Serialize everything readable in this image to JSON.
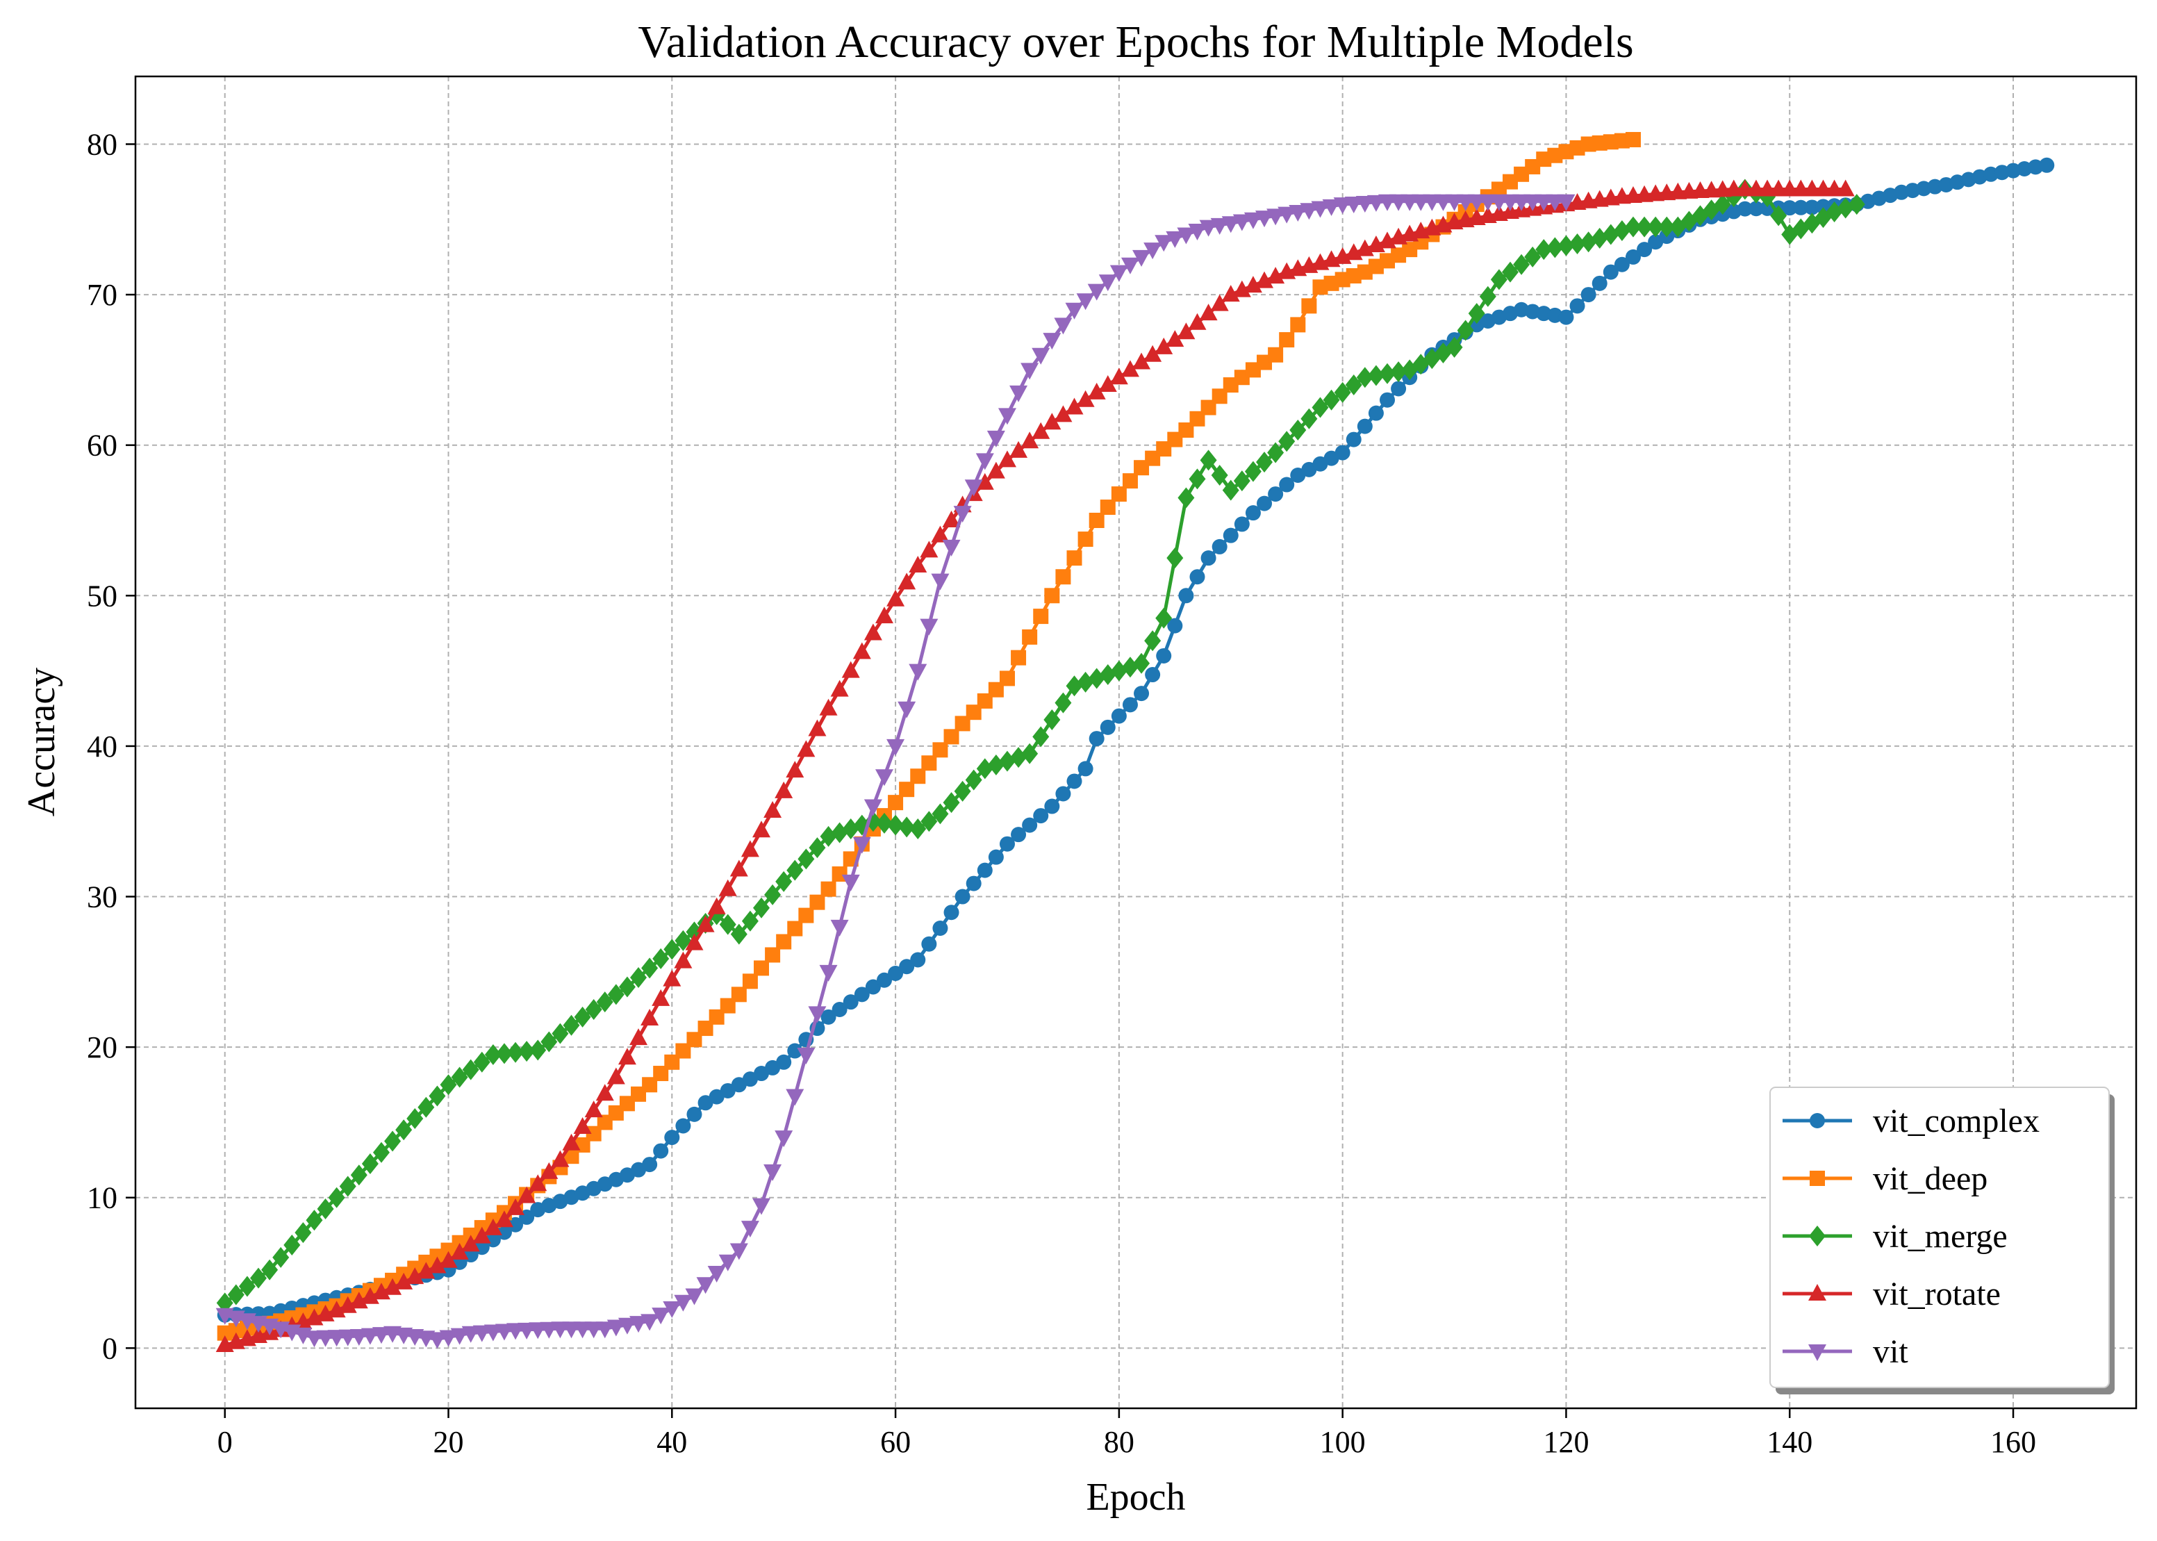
{
  "chart_data": {
    "type": "line",
    "title": "Validation Accuracy over Epochs for Multiple Models",
    "xlabel": "Epoch",
    "ylabel": "Accuracy",
    "xlim": [
      -8,
      171
    ],
    "ylim": [
      -4,
      84.5
    ],
    "xticks": [
      0,
      20,
      40,
      60,
      80,
      100,
      120,
      140,
      160
    ],
    "yticks": [
      0,
      10,
      20,
      30,
      40,
      50,
      60,
      70,
      80
    ],
    "grid": true,
    "legend_position": "lower-right",
    "series": [
      {
        "name": "vit_complex",
        "color": "#1f77b4",
        "marker": "circle",
        "keypoints": [
          [
            0,
            2.2
          ],
          [
            4,
            2.3
          ],
          [
            8,
            3.0
          ],
          [
            12,
            3.7
          ],
          [
            16,
            4.5
          ],
          [
            20,
            5.2
          ],
          [
            24,
            7.2
          ],
          [
            28,
            9.2
          ],
          [
            32,
            10.3
          ],
          [
            36,
            11.5
          ],
          [
            38,
            12.2
          ],
          [
            40,
            14.0
          ],
          [
            43,
            16.3
          ],
          [
            46,
            17.5
          ],
          [
            50,
            19.0
          ],
          [
            54,
            22.0
          ],
          [
            58,
            24.0
          ],
          [
            62,
            25.8
          ],
          [
            66,
            30.0
          ],
          [
            70,
            33.5
          ],
          [
            74,
            36.0
          ],
          [
            77,
            38.5
          ],
          [
            78,
            40.5
          ],
          [
            82,
            43.5
          ],
          [
            84,
            46.0
          ],
          [
            86,
            50.0
          ],
          [
            88,
            52.5
          ],
          [
            92,
            55.5
          ],
          [
            96,
            58.0
          ],
          [
            100,
            59.5
          ],
          [
            104,
            63.0
          ],
          [
            108,
            66.0
          ],
          [
            112,
            68.0
          ],
          [
            116,
            69.0
          ],
          [
            120,
            68.5
          ],
          [
            124,
            71.5
          ],
          [
            128,
            73.5
          ],
          [
            132,
            75.0
          ],
          [
            136,
            75.7
          ],
          [
            142,
            75.8
          ],
          [
            146,
            76.0
          ],
          [
            150,
            76.8
          ],
          [
            154,
            77.3
          ],
          [
            158,
            78.0
          ],
          [
            163,
            78.6
          ]
        ]
      },
      {
        "name": "vit_deep",
        "color": "#ff7f0e",
        "marker": "square",
        "keypoints": [
          [
            0,
            1.0
          ],
          [
            5,
            1.8
          ],
          [
            10,
            2.8
          ],
          [
            15,
            4.5
          ],
          [
            20,
            6.5
          ],
          [
            25,
            9.0
          ],
          [
            30,
            12.0
          ],
          [
            34,
            15.0
          ],
          [
            38,
            17.5
          ],
          [
            42,
            20.5
          ],
          [
            46,
            23.5
          ],
          [
            50,
            27.0
          ],
          [
            54,
            30.5
          ],
          [
            58,
            34.5
          ],
          [
            62,
            38.0
          ],
          [
            66,
            41.5
          ],
          [
            70,
            44.5
          ],
          [
            74,
            50.0
          ],
          [
            78,
            55.0
          ],
          [
            82,
            58.5
          ],
          [
            86,
            61.0
          ],
          [
            90,
            64.0
          ],
          [
            94,
            66.0
          ],
          [
            96,
            68.0
          ],
          [
            98,
            70.5
          ],
          [
            102,
            71.5
          ],
          [
            106,
            73.0
          ],
          [
            110,
            75.0
          ],
          [
            114,
            77.0
          ],
          [
            118,
            79.0
          ],
          [
            122,
            80.0
          ],
          [
            126,
            80.3
          ]
        ]
      },
      {
        "name": "vit_merge",
        "color": "#2ca02c",
        "marker": "diamond",
        "keypoints": [
          [
            0,
            3.0
          ],
          [
            4,
            5.2
          ],
          [
            8,
            8.5
          ],
          [
            12,
            11.5
          ],
          [
            16,
            14.5
          ],
          [
            20,
            17.5
          ],
          [
            24,
            19.5
          ],
          [
            28,
            19.8
          ],
          [
            32,
            22.0
          ],
          [
            36,
            24.0
          ],
          [
            40,
            26.5
          ],
          [
            44,
            28.8
          ],
          [
            46,
            27.5
          ],
          [
            50,
            31.0
          ],
          [
            54,
            34.0
          ],
          [
            58,
            35.0
          ],
          [
            62,
            34.5
          ],
          [
            64,
            35.5
          ],
          [
            68,
            38.5
          ],
          [
            72,
            39.5
          ],
          [
            76,
            44.0
          ],
          [
            80,
            45.0
          ],
          [
            82,
            45.5
          ],
          [
            84,
            48.5
          ],
          [
            86,
            56.5
          ],
          [
            88,
            59.0
          ],
          [
            90,
            57.0
          ],
          [
            94,
            59.5
          ],
          [
            98,
            62.5
          ],
          [
            102,
            64.5
          ],
          [
            106,
            65.0
          ],
          [
            110,
            66.5
          ],
          [
            114,
            71.0
          ],
          [
            118,
            73.0
          ],
          [
            122,
            73.5
          ],
          [
            126,
            74.5
          ],
          [
            130,
            74.5
          ],
          [
            134,
            76.0
          ],
          [
            136,
            77.0
          ],
          [
            138,
            76.5
          ],
          [
            140,
            74.0
          ],
          [
            144,
            75.5
          ],
          [
            146,
            76.0
          ]
        ]
      },
      {
        "name": "vit_rotate",
        "color": "#d62728",
        "marker": "triangle-up",
        "keypoints": [
          [
            0,
            0.2
          ],
          [
            5,
            1.2
          ],
          [
            10,
            2.5
          ],
          [
            15,
            4.0
          ],
          [
            20,
            5.8
          ],
          [
            25,
            8.5
          ],
          [
            30,
            12.5
          ],
          [
            35,
            18.0
          ],
          [
            40,
            24.5
          ],
          [
            45,
            30.5
          ],
          [
            50,
            37.0
          ],
          [
            54,
            42.5
          ],
          [
            58,
            47.5
          ],
          [
            62,
            52.0
          ],
          [
            66,
            56.0
          ],
          [
            70,
            59.0
          ],
          [
            74,
            61.5
          ],
          [
            78,
            63.5
          ],
          [
            82,
            65.5
          ],
          [
            86,
            67.5
          ],
          [
            90,
            70.0
          ],
          [
            95,
            71.5
          ],
          [
            100,
            72.5
          ],
          [
            105,
            73.8
          ],
          [
            110,
            74.8
          ],
          [
            115,
            75.5
          ],
          [
            120,
            76.0
          ],
          [
            125,
            76.5
          ],
          [
            130,
            76.8
          ],
          [
            135,
            77.0
          ],
          [
            140,
            77.0
          ],
          [
            145,
            77.0
          ]
        ]
      },
      {
        "name": "vit",
        "color": "#9467bd",
        "marker": "triangle-down",
        "keypoints": [
          [
            0,
            2.2
          ],
          [
            4,
            1.5
          ],
          [
            8,
            0.7
          ],
          [
            12,
            0.8
          ],
          [
            15,
            1.0
          ],
          [
            19,
            0.6
          ],
          [
            22,
            1.0
          ],
          [
            26,
            1.2
          ],
          [
            30,
            1.3
          ],
          [
            34,
            1.3
          ],
          [
            38,
            1.8
          ],
          [
            42,
            3.5
          ],
          [
            46,
            6.5
          ],
          [
            48,
            9.5
          ],
          [
            50,
            14.0
          ],
          [
            52,
            19.5
          ],
          [
            54,
            25.0
          ],
          [
            56,
            31.0
          ],
          [
            58,
            36.0
          ],
          [
            60,
            40.0
          ],
          [
            62,
            45.0
          ],
          [
            64,
            51.0
          ],
          [
            66,
            55.5
          ],
          [
            68,
            59.0
          ],
          [
            70,
            62.0
          ],
          [
            72,
            65.0
          ],
          [
            76,
            69.0
          ],
          [
            80,
            71.5
          ],
          [
            84,
            73.5
          ],
          [
            88,
            74.5
          ],
          [
            92,
            75.0
          ],
          [
            96,
            75.5
          ],
          [
            100,
            76.0
          ],
          [
            104,
            76.2
          ],
          [
            110,
            76.2
          ],
          [
            115,
            76.2
          ],
          [
            120,
            76.2
          ]
        ]
      }
    ]
  }
}
